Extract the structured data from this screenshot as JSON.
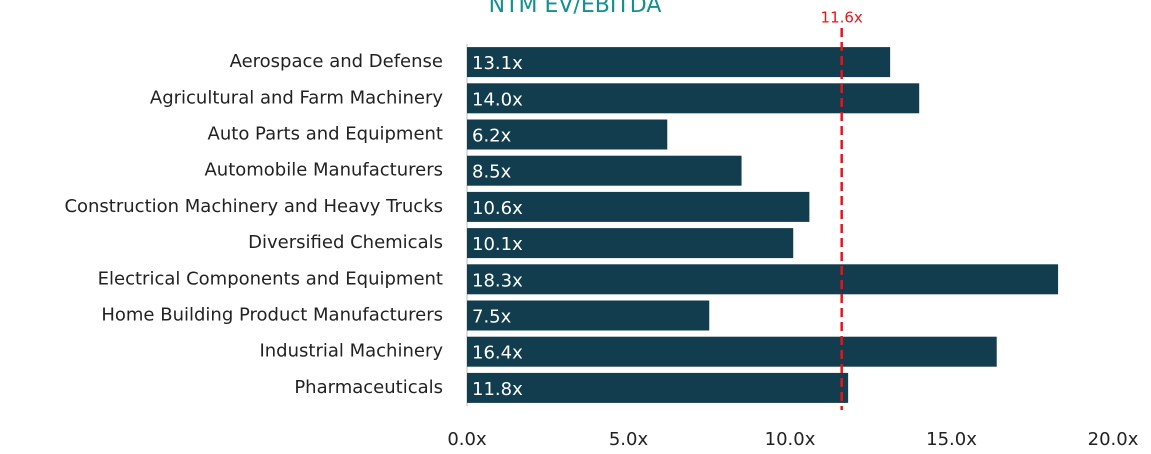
{
  "chart_data": {
    "type": "bar",
    "orientation": "horizontal",
    "title": "NTM EV/EBITDA",
    "categories": [
      "Aerospace and Defense",
      "Agricultural and Farm Machinery",
      "Auto Parts and Equipment",
      "Automobile Manufacturers",
      "Construction Machinery and Heavy Trucks",
      "Diversified Chemicals",
      "Electrical Components and Equipment",
      "Home Building Product Manufacturers",
      "Industrial Machinery",
      "Pharmaceuticals"
    ],
    "values": [
      13.1,
      14.0,
      6.2,
      8.5,
      10.6,
      10.1,
      18.3,
      7.5,
      16.4,
      11.8
    ],
    "value_labels": [
      "13.1x",
      "14.0x",
      "6.2x",
      "8.5x",
      "10.6x",
      "10.1x",
      "18.3x",
      "7.5x",
      "16.4x",
      "11.8x"
    ],
    "color": "#123d4e",
    "xlim": [
      0,
      20
    ],
    "xticks": [
      {
        "value": 0,
        "label": "0.0x"
      },
      {
        "value": 5,
        "label": "5.0x"
      },
      {
        "value": 10,
        "label": "10.0x"
      },
      {
        "value": 15,
        "label": "15.0x"
      },
      {
        "value": 20,
        "label": "20.0x"
      }
    ],
    "reference_line": {
      "value": 11.6,
      "label": "11.6x",
      "color": "#e8141c"
    },
    "grid": false
  }
}
